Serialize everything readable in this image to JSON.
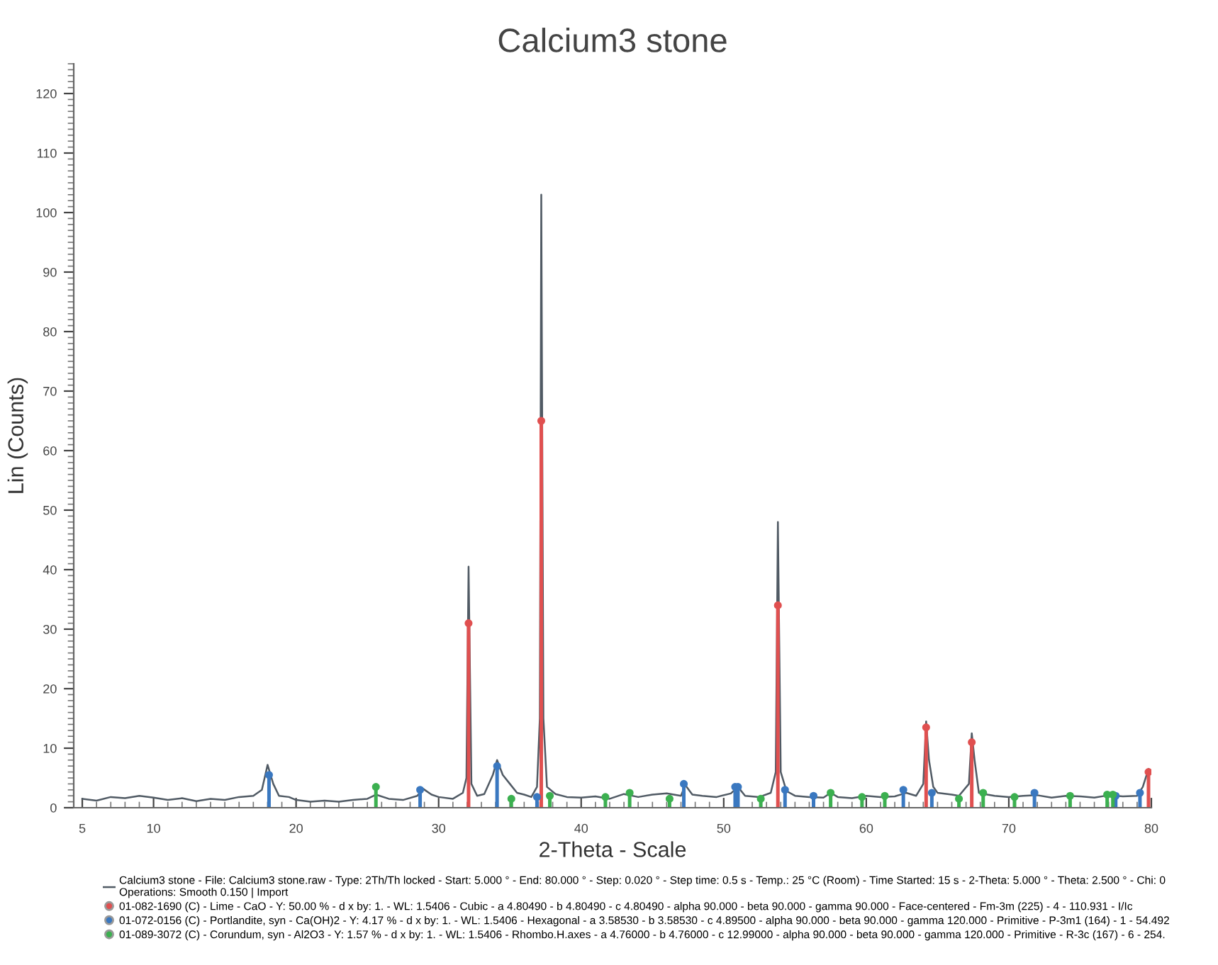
{
  "chart_data": {
    "type": "line",
    "title": "Calcium3 stone",
    "xlabel": "2-Theta - Scale",
    "ylabel": "Lin (Counts)",
    "xlim": [
      4.4,
      80
    ],
    "ylim": [
      0,
      125
    ],
    "xticks": [
      5,
      10,
      20,
      30,
      40,
      50,
      60,
      70,
      80
    ],
    "yticks": [
      0,
      10,
      20,
      30,
      40,
      50,
      60,
      70,
      80,
      90,
      100,
      110,
      120
    ],
    "grid": false,
    "legend": "bottom",
    "series": [
      {
        "name": "Calcium3 stone - File: Calcium3 stone.raw - Type: 2Th/Th locked - Start: 5.000 ° - End: 80.000 ° - Step: 0.020 ° - Step time: 0.5 s - Temp.: 25 °C (Room) - Time Started: 15 s - 2-Theta: 5.000 ° - Theta: 2.500 ° - Chi: 0\nOperations: Smooth 0.150 | Import",
        "color": "#505a64",
        "x": [
          5,
          6,
          7,
          8,
          9,
          10,
          11,
          12,
          13,
          14,
          15,
          16,
          17,
          17.6,
          18.0,
          18.4,
          18.8,
          19.5,
          20,
          21,
          22,
          23,
          24,
          25,
          25.6,
          26.5,
          27.5,
          28.5,
          28.9,
          29.5,
          30,
          31,
          31.7,
          31.95,
          32.1,
          32.3,
          32.7,
          33.2,
          33.8,
          34.1,
          34.5,
          35.0,
          35.5,
          36,
          36.5,
          36.9,
          37.1,
          37.2,
          37.35,
          37.6,
          38.2,
          39,
          40,
          41,
          42,
          43,
          44,
          45,
          46,
          47,
          47.3,
          47.8,
          48.5,
          49.5,
          50.5,
          51,
          51.5,
          52.5,
          53.3,
          53.65,
          53.8,
          54.0,
          54.4,
          55,
          56,
          57,
          57.5,
          58,
          59,
          60,
          61,
          62,
          62.8,
          63.5,
          64.0,
          64.2,
          64.4,
          64.7,
          65,
          66,
          66.5,
          67.2,
          67.4,
          67.6,
          67.9,
          68.5,
          69,
          70,
          71,
          72,
          73,
          74,
          75,
          76,
          77,
          78,
          79,
          79.4,
          79.8
        ],
        "values": [
          1.5,
          1.2,
          1.8,
          1.6,
          2.0,
          1.7,
          1.3,
          1.6,
          1.1,
          1.5,
          1.3,
          1.8,
          2.0,
          3.0,
          7.2,
          4.0,
          2.0,
          1.8,
          1.3,
          1.0,
          1.2,
          1.0,
          1.3,
          1.5,
          2.2,
          1.5,
          1.3,
          2.0,
          3.2,
          2.2,
          1.8,
          1.5,
          2.5,
          5,
          40.5,
          4,
          2.0,
          2.3,
          5.5,
          8.0,
          5.5,
          4.0,
          2.5,
          2.2,
          1.8,
          3.5,
          15,
          103,
          15,
          3.5,
          2.3,
          1.8,
          1.7,
          1.9,
          1.5,
          2.3,
          1.8,
          2.2,
          2.4,
          2.0,
          3.8,
          2.2,
          2.0,
          1.8,
          2.4,
          3.5,
          2.0,
          1.8,
          2.5,
          6,
          48,
          6,
          2.8,
          2.0,
          1.8,
          1.7,
          2.5,
          1.8,
          1.6,
          2.0,
          1.8,
          1.9,
          2.5,
          2.0,
          4,
          14.5,
          8,
          3.5,
          2.5,
          2.2,
          2.0,
          4,
          12.5,
          8,
          2.5,
          2.2,
          2.0,
          1.8,
          2.0,
          2.1,
          1.7,
          2.0,
          1.9,
          1.7,
          2.1,
          1.9,
          2.0,
          3.5,
          6.5
        ]
      },
      {
        "type": "lollipop",
        "name": "01-082-1690 (C) - Lime - CaO - Y: 50.00 % - d x by: 1. - WL: 1.5406 - Cubic - a 4.80490 - b 4.80490 - c 4.80490 - alpha 90.000 - beta 90.000 - gamma 90.000 - Face-centered - Fm-3m (225) - 4 - 110.931 - I/Ic",
        "color": "#e05050",
        "x": [
          32.1,
          37.2,
          53.8,
          64.2,
          67.4,
          79.8
        ],
        "values": [
          31,
          65,
          34,
          13.5,
          11,
          6
        ]
      },
      {
        "type": "lollipop",
        "name": "01-072-0156 (C) - Portlandite, syn - Ca(OH)2 - Y: 4.17 % - d x by: 1. - WL: 1.5406 - Hexagonal - a 3.58530 - b 3.58530 - c 4.89500 - alpha 90.000 - beta 90.000 - gamma 120.000 - Primitive - P-3m1 (164) - 1 - 54.492",
        "color": "#3a78c0",
        "x": [
          18.1,
          28.7,
          34.1,
          36.9,
          47.2,
          50.8,
          51.0,
          54.3,
          56.3,
          62.6,
          64.6,
          71.8,
          77.5,
          79.2
        ],
        "values": [
          5.5,
          3,
          7,
          1.8,
          4,
          3.5,
          3.5,
          3,
          2,
          3,
          2.5,
          2.5,
          2,
          2.5
        ]
      },
      {
        "type": "lollipop",
        "name": "01-089-3072 (C) - Corundum, syn - Al2O3 - Y: 1.57 % - d x by: 1. - WL: 1.5406 - Rhombo.H.axes - a 4.76000 - b 4.76000 - c 12.99000 - alpha 90.000 - beta 90.000 - gamma 120.000 - Primitive - R-3c (167) - 6 - 254.",
        "color": "#3cb050",
        "x": [
          25.6,
          35.1,
          37.8,
          41.7,
          43.4,
          46.2,
          52.6,
          57.5,
          59.7,
          61.3,
          66.5,
          68.2,
          70.4,
          74.3,
          76.9,
          77.3
        ],
        "values": [
          3.5,
          1.5,
          2,
          1.8,
          2.5,
          1.5,
          1.5,
          2.5,
          1.8,
          2,
          1.5,
          2.5,
          1.8,
          2,
          2.2,
          2.2
        ]
      }
    ]
  }
}
